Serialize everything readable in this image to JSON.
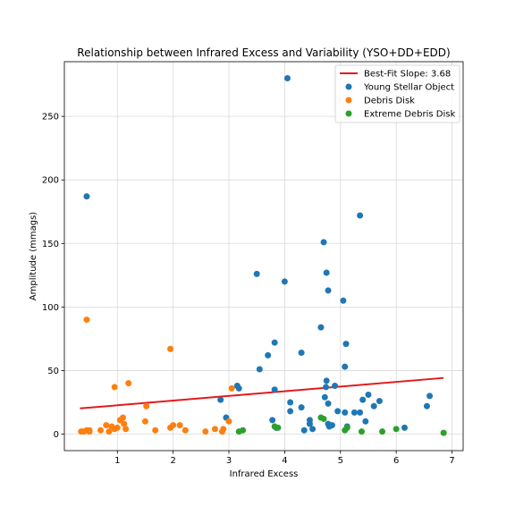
{
  "chart_data": {
    "type": "scatter",
    "title": "Relationship between Infrared Excess and Variability (YSO+DD+EDD)",
    "xlabel": "Infrared Excess",
    "ylabel": "Amplitude (mmags)",
    "xlim": [
      0.05,
      7.2
    ],
    "ylim": [
      -13,
      293
    ],
    "xticks": [
      1,
      2,
      3,
      4,
      5,
      6,
      7
    ],
    "yticks": [
      0,
      50,
      100,
      150,
      200,
      250
    ],
    "grid": true,
    "legend_position": "top-right",
    "fit_line": {
      "label": "Best-Fit Slope: 3.68",
      "color": "#e41a1c",
      "x": [
        0.33,
        6.85
      ],
      "y": [
        20.2,
        44.2
      ]
    },
    "series": [
      {
        "name": "Young Stellar Object",
        "color": "#1f77b4",
        "points": [
          [
            0.45,
            187
          ],
          [
            2.85,
            27
          ],
          [
            2.95,
            13
          ],
          [
            3.15,
            38
          ],
          [
            3.18,
            36
          ],
          [
            3.5,
            126
          ],
          [
            3.55,
            51
          ],
          [
            3.7,
            62
          ],
          [
            3.78,
            11
          ],
          [
            3.82,
            72
          ],
          [
            3.82,
            35
          ],
          [
            3.85,
            5
          ],
          [
            4.0,
            120
          ],
          [
            4.05,
            280
          ],
          [
            4.1,
            25
          ],
          [
            4.1,
            18
          ],
          [
            4.3,
            64
          ],
          [
            4.3,
            21
          ],
          [
            4.35,
            3
          ],
          [
            4.45,
            8
          ],
          [
            4.45,
            11
          ],
          [
            4.5,
            4
          ],
          [
            4.65,
            84
          ],
          [
            4.7,
            151
          ],
          [
            4.72,
            29
          ],
          [
            4.74,
            37
          ],
          [
            4.75,
            127
          ],
          [
            4.75,
            42
          ],
          [
            4.78,
            113
          ],
          [
            4.78,
            24
          ],
          [
            4.78,
            8
          ],
          [
            4.8,
            6
          ],
          [
            4.85,
            7
          ],
          [
            4.9,
            38
          ],
          [
            4.95,
            18
          ],
          [
            5.05,
            105
          ],
          [
            5.08,
            53
          ],
          [
            5.1,
            71
          ],
          [
            5.08,
            17
          ],
          [
            5.12,
            6
          ],
          [
            5.25,
            17
          ],
          [
            5.35,
            172
          ],
          [
            5.35,
            17
          ],
          [
            5.4,
            27
          ],
          [
            5.45,
            10
          ],
          [
            5.5,
            31
          ],
          [
            5.6,
            22
          ],
          [
            5.7,
            26
          ],
          [
            6.15,
            5
          ],
          [
            6.55,
            22
          ],
          [
            6.6,
            30
          ]
        ]
      },
      {
        "name": "Debris Disk",
        "color": "#ff7f0e",
        "points": [
          [
            0.35,
            2
          ],
          [
            0.4,
            2
          ],
          [
            0.45,
            3
          ],
          [
            0.45,
            90
          ],
          [
            0.5,
            3
          ],
          [
            0.5,
            2
          ],
          [
            0.7,
            3
          ],
          [
            0.8,
            7
          ],
          [
            0.85,
            2
          ],
          [
            0.9,
            6
          ],
          [
            0.95,
            4
          ],
          [
            0.95,
            37
          ],
          [
            1.0,
            5
          ],
          [
            1.05,
            11
          ],
          [
            1.1,
            13
          ],
          [
            1.12,
            8
          ],
          [
            1.15,
            4
          ],
          [
            1.2,
            40
          ],
          [
            1.5,
            10
          ],
          [
            1.52,
            22
          ],
          [
            1.68,
            3
          ],
          [
            1.95,
            67
          ],
          [
            1.95,
            5
          ],
          [
            2.0,
            7
          ],
          [
            2.12,
            7
          ],
          [
            2.22,
            3
          ],
          [
            2.58,
            2
          ],
          [
            2.75,
            4
          ],
          [
            2.88,
            2
          ],
          [
            2.9,
            4
          ],
          [
            3.0,
            10
          ],
          [
            3.05,
            36
          ]
        ]
      },
      {
        "name": "Extreme Debris Disk",
        "color": "#2ca02c",
        "points": [
          [
            3.18,
            2
          ],
          [
            3.25,
            3
          ],
          [
            3.82,
            6
          ],
          [
            3.88,
            5
          ],
          [
            4.65,
            13
          ],
          [
            4.7,
            12
          ],
          [
            5.08,
            3
          ],
          [
            5.12,
            5
          ],
          [
            5.38,
            2
          ],
          [
            5.75,
            2
          ],
          [
            6.0,
            4
          ],
          [
            6.85,
            1
          ]
        ]
      }
    ]
  }
}
